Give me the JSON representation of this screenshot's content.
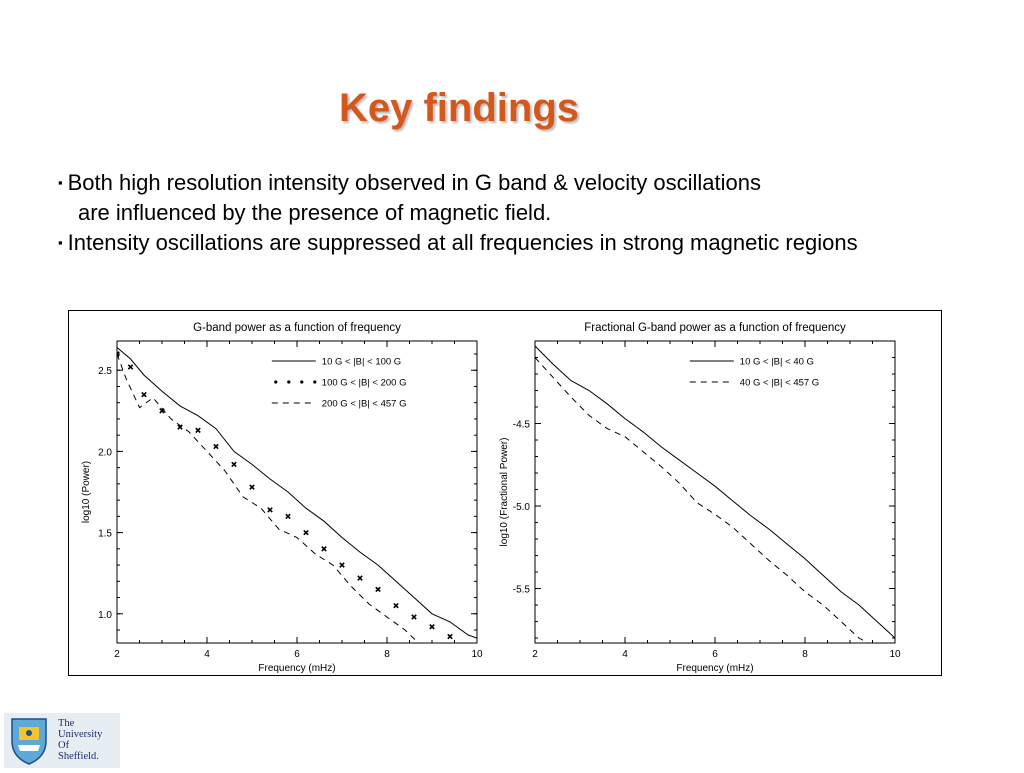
{
  "slide": {
    "title": "Key findings",
    "bullets": [
      {
        "lines": [
          "Both high resolution intensity observed in G band & velocity oscillations",
          "are influenced by the presence of magnetic field."
        ]
      },
      {
        "lines": [
          "Intensity oscillations are suppressed at all frequencies in strong magnetic regions"
        ]
      }
    ],
    "bullet_glyph": "▪"
  },
  "logo": {
    "icon": "university-shield-icon",
    "lines": [
      "The",
      "University",
      "Of",
      "Sheffield."
    ]
  },
  "chart_data": [
    {
      "type": "line",
      "title": "G-band power as a function of frequency",
      "xlabel": "Frequency (mHz)",
      "ylabel": "log10 (Power)",
      "xlim": [
        2,
        10
      ],
      "ylim": [
        0.82,
        2.68
      ],
      "xticks": [
        2,
        4,
        6,
        8,
        10
      ],
      "yticks": [
        1.0,
        1.5,
        2.0,
        2.5
      ],
      "xtick_labels": [
        "2",
        "4",
        "6",
        "8",
        "10"
      ],
      "ytick_labels": [
        "1.0",
        "1.5",
        "2.0",
        "2.5"
      ],
      "legend_position": "top-right",
      "series": [
        {
          "name": "10 G < |B| < 100 G",
          "style": "solid",
          "x": [
            2.0,
            2.3,
            2.6,
            3.0,
            3.4,
            3.8,
            4.2,
            4.6,
            5.0,
            5.4,
            5.8,
            6.2,
            6.6,
            7.0,
            7.4,
            7.8,
            8.2,
            8.6,
            9.0,
            9.4,
            9.8,
            10.0
          ],
          "y": [
            2.64,
            2.57,
            2.47,
            2.37,
            2.28,
            2.22,
            2.14,
            2.0,
            1.92,
            1.83,
            1.75,
            1.65,
            1.57,
            1.47,
            1.38,
            1.3,
            1.2,
            1.1,
            1.0,
            0.95,
            0.87,
            0.85
          ]
        },
        {
          "name": "100 G < |B| < 200 G",
          "style": "dotted",
          "x": [
            2.0,
            2.3,
            2.6,
            3.0,
            3.4,
            3.8,
            4.2,
            4.6,
            5.0,
            5.4,
            5.8,
            6.2,
            6.6,
            7.0,
            7.4,
            7.8,
            8.2,
            8.6,
            9.0,
            9.4
          ],
          "y": [
            2.6,
            2.52,
            2.35,
            2.25,
            2.15,
            2.13,
            2.03,
            1.92,
            1.78,
            1.64,
            1.6,
            1.5,
            1.4,
            1.3,
            1.22,
            1.15,
            1.05,
            0.98,
            0.92,
            0.86
          ]
        },
        {
          "name": "200 G < |B| < 457 G",
          "style": "dashed",
          "x": [
            2.0,
            2.2,
            2.5,
            2.8,
            3.2,
            3.6,
            4.0,
            4.4,
            4.8,
            5.2,
            5.6,
            6.0,
            6.4,
            6.8,
            7.2,
            7.6,
            8.0,
            8.4,
            8.7
          ],
          "y": [
            2.6,
            2.45,
            2.27,
            2.33,
            2.2,
            2.12,
            2.0,
            1.88,
            1.72,
            1.65,
            1.52,
            1.47,
            1.37,
            1.3,
            1.17,
            1.06,
            0.98,
            0.9,
            0.82
          ]
        }
      ]
    },
    {
      "type": "line",
      "title": "Fractional G-band power as a function of frequency",
      "xlabel": "Frequency (mHz)",
      "ylabel": "log10 (Fractional Power)",
      "xlim": [
        2,
        10
      ],
      "ylim": [
        -5.83,
        -4.0
      ],
      "xticks": [
        2,
        4,
        6,
        8,
        10
      ],
      "yticks": [
        -4.5,
        -5.0,
        -5.5
      ],
      "xtick_labels": [
        "2",
        "4",
        "6",
        "8",
        "10"
      ],
      "ytick_labels": [
        "-4.5",
        "-5.0",
        "-5.5"
      ],
      "legend_position": "top-right",
      "series": [
        {
          "name": "10 G < |B| < 40 G",
          "style": "solid",
          "x": [
            2.0,
            2.4,
            2.8,
            3.2,
            3.6,
            4.0,
            4.4,
            4.8,
            5.2,
            5.6,
            6.0,
            6.4,
            6.8,
            7.2,
            7.6,
            8.0,
            8.4,
            8.8,
            9.2,
            9.6,
            10.0
          ],
          "y": [
            -4.03,
            -4.14,
            -4.24,
            -4.3,
            -4.38,
            -4.47,
            -4.55,
            -4.64,
            -4.72,
            -4.8,
            -4.88,
            -4.97,
            -5.06,
            -5.14,
            -5.23,
            -5.32,
            -5.42,
            -5.52,
            -5.6,
            -5.7,
            -5.8
          ]
        },
        {
          "name": "40 G < |B| < 457 G",
          "style": "dashed",
          "x": [
            2.0,
            2.4,
            2.8,
            3.2,
            3.6,
            4.0,
            4.4,
            4.8,
            5.2,
            5.6,
            6.0,
            6.4,
            6.8,
            7.2,
            7.6,
            8.0,
            8.4,
            8.8,
            9.2,
            9.4
          ],
          "y": [
            -4.1,
            -4.22,
            -4.34,
            -4.45,
            -4.53,
            -4.58,
            -4.67,
            -4.76,
            -4.86,
            -4.98,
            -5.05,
            -5.13,
            -5.23,
            -5.33,
            -5.42,
            -5.52,
            -5.6,
            -5.7,
            -5.8,
            -5.83
          ]
        }
      ]
    }
  ]
}
